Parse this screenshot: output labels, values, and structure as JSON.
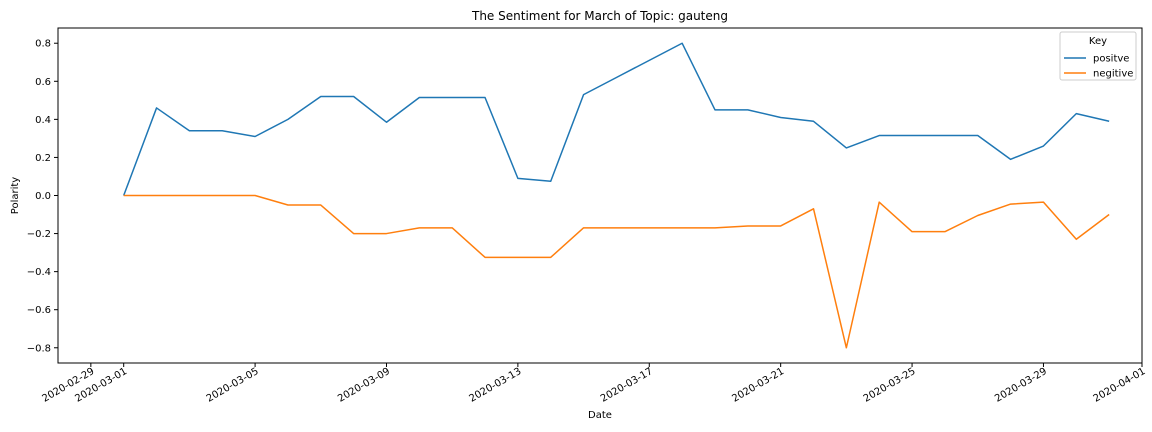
{
  "chart_data": {
    "type": "line",
    "title": "The Sentiment for March of Topic: gauteng",
    "xlabel": "Date",
    "ylabel": "Polarity",
    "x": [
      "2020-03-01",
      "2020-03-02",
      "2020-03-03",
      "2020-03-04",
      "2020-03-05",
      "2020-03-06",
      "2020-03-07",
      "2020-03-08",
      "2020-03-09",
      "2020-03-10",
      "2020-03-11",
      "2020-03-12",
      "2020-03-13",
      "2020-03-14",
      "2020-03-15",
      "2020-03-16",
      "2020-03-17",
      "2020-03-18",
      "2020-03-19",
      "2020-03-20",
      "2020-03-21",
      "2020-03-22",
      "2020-03-23",
      "2020-03-24",
      "2020-03-25",
      "2020-03-26",
      "2020-03-27",
      "2020-03-28",
      "2020-03-29",
      "2020-03-30",
      "2020-03-31"
    ],
    "series": [
      {
        "name": "positve",
        "color": "#1f77b4",
        "values": [
          0.0,
          0.46,
          0.34,
          0.34,
          0.31,
          0.4,
          0.52,
          0.52,
          0.385,
          0.515,
          0.515,
          0.515,
          0.09,
          0.075,
          0.53,
          0.62,
          0.71,
          0.8,
          0.45,
          0.45,
          0.41,
          0.39,
          0.25,
          0.315,
          0.315,
          0.315,
          0.315,
          0.19,
          0.26,
          0.43,
          0.39
        ]
      },
      {
        "name": "negitive",
        "color": "#ff7f0e",
        "values": [
          0.0,
          0.0,
          0.0,
          0.0,
          0.0,
          -0.05,
          -0.05,
          -0.2,
          -0.2,
          -0.17,
          -0.17,
          -0.325,
          -0.325,
          -0.325,
          -0.17,
          -0.17,
          -0.17,
          -0.17,
          -0.17,
          -0.16,
          -0.16,
          -0.07,
          -0.8,
          -0.035,
          -0.19,
          -0.19,
          -0.105,
          -0.045,
          -0.035,
          -0.23,
          -0.1
        ]
      }
    ],
    "xticks": [
      "2020-02-29",
      "2020-03-01",
      "2020-03-05",
      "2020-03-09",
      "2020-03-13",
      "2020-03-17",
      "2020-03-21",
      "2020-03-25",
      "2020-03-29",
      "2020-04-01"
    ],
    "yticks": [
      -0.8,
      -0.6,
      -0.4,
      -0.2,
      0.0,
      0.2,
      0.4,
      0.6,
      0.8
    ],
    "ytick_labels": [
      "−0.8",
      "−0.6",
      "−0.4",
      "−0.2",
      "0.0",
      "0.2",
      "0.4",
      "0.6",
      "0.8"
    ],
    "xlim": [
      "2020-02-28",
      "2020-04-01"
    ],
    "ylim": [
      -0.88,
      0.88
    ],
    "legend": {
      "title": "Key",
      "position": "top-right"
    },
    "grid": false
  }
}
